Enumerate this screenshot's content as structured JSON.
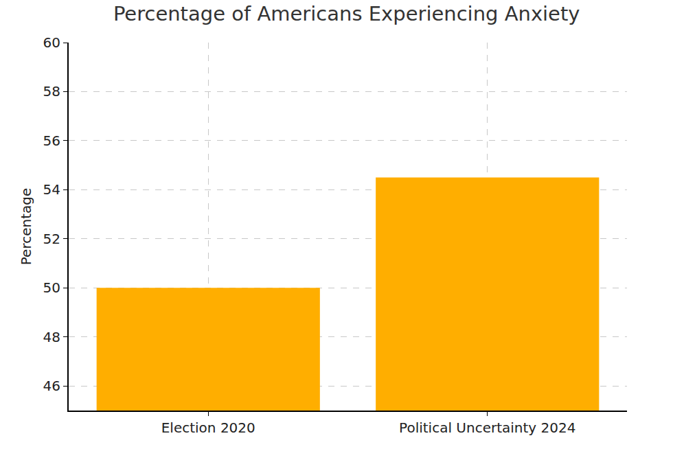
{
  "chart_data": {
    "type": "bar",
    "title": "Percentage of Americans Experiencing Anxiety",
    "y_label": "Percentage",
    "categories": [
      "Election 2020",
      "Political Uncertainty 2024"
    ],
    "values": [
      50,
      54.5
    ],
    "color": "#ffae00",
    "ylim": [
      45,
      60
    ],
    "yticks": [
      46,
      48,
      50,
      52,
      54,
      56,
      58,
      60
    ],
    "grid": true
  }
}
